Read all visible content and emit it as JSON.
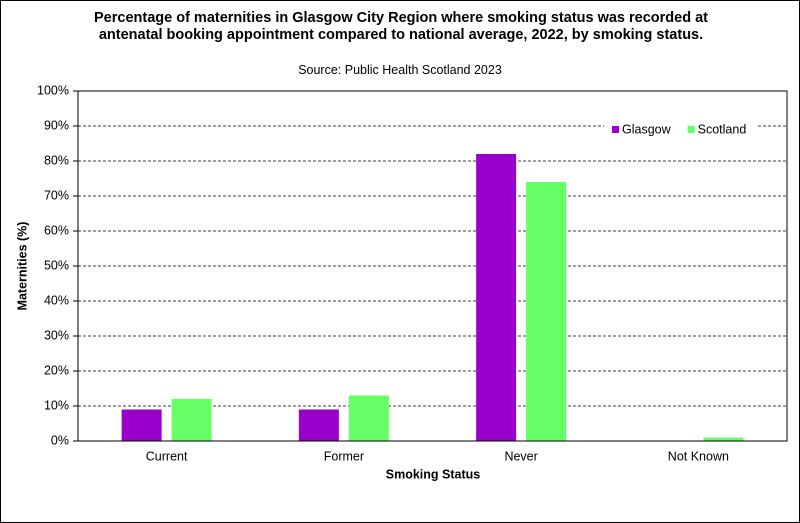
{
  "chart_data": {
    "type": "bar",
    "title": "Percentage of maternities in Glasgow City Region where smoking status was recorded at antenatal booking appointment compared to national average, 2022, by smoking status.",
    "subtitle": "Source: Public Health Scotland 2023",
    "x_label": "Smoking Status",
    "y_label": "Maternities (%)",
    "categories": [
      "Current",
      "Former",
      "Never",
      "Not Known"
    ],
    "series": [
      {
        "name": "Glasgow",
        "color": "#9900cc",
        "values": [
          9,
          9,
          82,
          0
        ]
      },
      {
        "name": "Scotland",
        "color": "#66ff66",
        "values": [
          12,
          13,
          74,
          1
        ]
      }
    ],
    "ylim": [
      0,
      100
    ],
    "yticks": [
      {
        "value": 0,
        "label": "0%"
      },
      {
        "value": 10,
        "label": "10%"
      },
      {
        "value": 20,
        "label": "20%"
      },
      {
        "value": 30,
        "label": "30%"
      },
      {
        "value": 40,
        "label": "40%"
      },
      {
        "value": 50,
        "label": "50%"
      },
      {
        "value": 60,
        "label": "60%"
      },
      {
        "value": 70,
        "label": "70%"
      },
      {
        "value": 80,
        "label": "80%"
      },
      {
        "value": 90,
        "label": "90%"
      },
      {
        "value": 100,
        "label": "100%"
      }
    ],
    "grid": true,
    "legend": "top-right"
  }
}
